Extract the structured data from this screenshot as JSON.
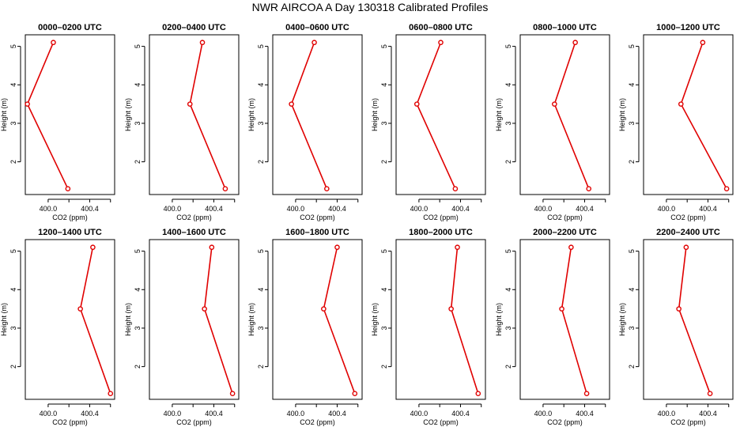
{
  "title": "NWR AIRCOA A  Day 130318  Calibrated Profiles",
  "colors": {
    "series": "#e00000",
    "axis": "#000000",
    "background": "#ffffff"
  },
  "chart_data": [
    {
      "type": "line",
      "title": "0000–0200 UTC",
      "xlabel": "CO2 (ppm)",
      "ylabel": "Height (m)",
      "xlim": [
        399.78,
        400.64
      ],
      "ylim": [
        1.15,
        5.3
      ],
      "xticks": [
        400.0,
        400.4
      ],
      "xtick_labels": [
        "400.0",
        "400.4"
      ],
      "yticks": [
        2,
        3,
        4,
        5
      ],
      "ytick_labels": [
        "2",
        "3",
        "4",
        "5"
      ],
      "x": [
        400.05,
        399.8,
        400.19
      ],
      "y": [
        5.1,
        3.5,
        1.3
      ]
    },
    {
      "type": "line",
      "title": "0200–0400 UTC",
      "xlabel": "CO2 (ppm)",
      "ylabel": "Height (m)",
      "xlim": [
        399.78,
        400.64
      ],
      "ylim": [
        1.15,
        5.3
      ],
      "xticks": [
        400.0,
        400.4
      ],
      "xtick_labels": [
        "400.0",
        "400.4"
      ],
      "yticks": [
        2,
        3,
        4,
        5
      ],
      "ytick_labels": [
        "2",
        "3",
        "4",
        "5"
      ],
      "x": [
        400.29,
        400.17,
        400.51
      ],
      "y": [
        5.1,
        3.5,
        1.3
      ]
    },
    {
      "type": "line",
      "title": "0400–0600 UTC",
      "xlabel": "CO2 (ppm)",
      "ylabel": "Height (m)",
      "xlim": [
        399.78,
        400.64
      ],
      "ylim": [
        1.15,
        5.3
      ],
      "xticks": [
        400.0,
        400.4
      ],
      "xtick_labels": [
        "400.0",
        "400.4"
      ],
      "yticks": [
        2,
        3,
        4,
        5
      ],
      "ytick_labels": [
        "2",
        "3",
        "4",
        "5"
      ],
      "x": [
        400.18,
        399.96,
        400.3
      ],
      "y": [
        5.1,
        3.5,
        1.3
      ]
    },
    {
      "type": "line",
      "title": "0600–0800 UTC",
      "xlabel": "CO2 (ppm)",
      "ylabel": "Height (m)",
      "xlim": [
        399.78,
        400.64
      ],
      "ylim": [
        1.15,
        5.3
      ],
      "xticks": [
        400.0,
        400.4
      ],
      "xtick_labels": [
        "400.0",
        "400.4"
      ],
      "yticks": [
        2,
        3,
        4,
        5
      ],
      "ytick_labels": [
        "2",
        "3",
        "4",
        "5"
      ],
      "x": [
        400.21,
        399.98,
        400.35
      ],
      "y": [
        5.1,
        3.5,
        1.3
      ]
    },
    {
      "type": "line",
      "title": "0800–1000 UTC",
      "xlabel": "CO2 (ppm)",
      "ylabel": "Height (m)",
      "xlim": [
        399.78,
        400.64
      ],
      "ylim": [
        1.15,
        5.3
      ],
      "xticks": [
        400.0,
        400.4
      ],
      "xtick_labels": [
        "400.0",
        "400.4"
      ],
      "yticks": [
        2,
        3,
        4,
        5
      ],
      "ytick_labels": [
        "2",
        "3",
        "4",
        "5"
      ],
      "x": [
        400.31,
        400.11,
        400.44
      ],
      "y": [
        5.1,
        3.5,
        1.3
      ]
    },
    {
      "type": "line",
      "title": "1000–1200 UTC",
      "xlabel": "CO2 (ppm)",
      "ylabel": "Height (m)",
      "xlim": [
        399.78,
        400.64
      ],
      "ylim": [
        1.15,
        5.3
      ],
      "xticks": [
        400.0,
        400.4
      ],
      "xtick_labels": [
        "400.0",
        "400.4"
      ],
      "yticks": [
        2,
        3,
        4,
        5
      ],
      "ytick_labels": [
        "2",
        "3",
        "4",
        "5"
      ],
      "x": [
        400.35,
        400.14,
        400.58
      ],
      "y": [
        5.1,
        3.5,
        1.3
      ]
    },
    {
      "type": "line",
      "title": "1200–1400 UTC",
      "xlabel": "CO2 (ppm)",
      "ylabel": "Height (m)",
      "xlim": [
        399.78,
        400.64
      ],
      "ylim": [
        1.15,
        5.3
      ],
      "xticks": [
        400.0,
        400.4
      ],
      "xtick_labels": [
        "400.0",
        "400.4"
      ],
      "yticks": [
        2,
        3,
        4,
        5
      ],
      "ytick_labels": [
        "2",
        "3",
        "4",
        "5"
      ],
      "x": [
        400.43,
        400.31,
        400.6
      ],
      "y": [
        5.1,
        3.5,
        1.3
      ]
    },
    {
      "type": "line",
      "title": "1400–1600 UTC",
      "xlabel": "CO2 (ppm)",
      "ylabel": "Height (m)",
      "xlim": [
        399.78,
        400.64
      ],
      "ylim": [
        1.15,
        5.3
      ],
      "xticks": [
        400.0,
        400.4
      ],
      "xtick_labels": [
        "400.0",
        "400.4"
      ],
      "yticks": [
        2,
        3,
        4,
        5
      ],
      "ytick_labels": [
        "2",
        "3",
        "4",
        "5"
      ],
      "x": [
        400.38,
        400.31,
        400.58
      ],
      "y": [
        5.1,
        3.5,
        1.3
      ]
    },
    {
      "type": "line",
      "title": "1600–1800 UTC",
      "xlabel": "CO2 (ppm)",
      "ylabel": "Height (m)",
      "xlim": [
        399.78,
        400.64
      ],
      "ylim": [
        1.15,
        5.3
      ],
      "xticks": [
        400.0,
        400.4
      ],
      "xtick_labels": [
        "400.0",
        "400.4"
      ],
      "yticks": [
        2,
        3,
        4,
        5
      ],
      "ytick_labels": [
        "2",
        "3",
        "4",
        "5"
      ],
      "x": [
        400.4,
        400.27,
        400.57
      ],
      "y": [
        5.1,
        3.5,
        1.3
      ]
    },
    {
      "type": "line",
      "title": "1800–2000 UTC",
      "xlabel": "CO2 (ppm)",
      "ylabel": "Height (m)",
      "xlim": [
        399.78,
        400.64
      ],
      "ylim": [
        1.15,
        5.3
      ],
      "xticks": [
        400.0,
        400.4
      ],
      "xtick_labels": [
        "400.0",
        "400.4"
      ],
      "yticks": [
        2,
        3,
        4,
        5
      ],
      "ytick_labels": [
        "2",
        "3",
        "4",
        "5"
      ],
      "x": [
        400.37,
        400.31,
        400.57
      ],
      "y": [
        5.1,
        3.5,
        1.3
      ]
    },
    {
      "type": "line",
      "title": "2000–2200 UTC",
      "xlabel": "CO2 (ppm)",
      "ylabel": "Height (m)",
      "xlim": [
        399.78,
        400.64
      ],
      "ylim": [
        1.15,
        5.3
      ],
      "xticks": [
        400.0,
        400.4
      ],
      "xtick_labels": [
        "400.0",
        "400.4"
      ],
      "yticks": [
        2,
        3,
        4,
        5
      ],
      "ytick_labels": [
        "2",
        "3",
        "4",
        "5"
      ],
      "x": [
        400.27,
        400.18,
        400.42
      ],
      "y": [
        5.1,
        3.5,
        1.3
      ]
    },
    {
      "type": "line",
      "title": "2200–2400 UTC",
      "xlabel": "CO2 (ppm)",
      "ylabel": "Height (m)",
      "xlim": [
        399.78,
        400.64
      ],
      "ylim": [
        1.15,
        5.3
      ],
      "xticks": [
        400.0,
        400.4
      ],
      "xtick_labels": [
        "400.0",
        "400.4"
      ],
      "yticks": [
        2,
        3,
        4,
        5
      ],
      "ytick_labels": [
        "2",
        "3",
        "4",
        "5"
      ],
      "x": [
        400.19,
        400.12,
        400.42
      ],
      "y": [
        5.1,
        3.5,
        1.3
      ]
    }
  ]
}
